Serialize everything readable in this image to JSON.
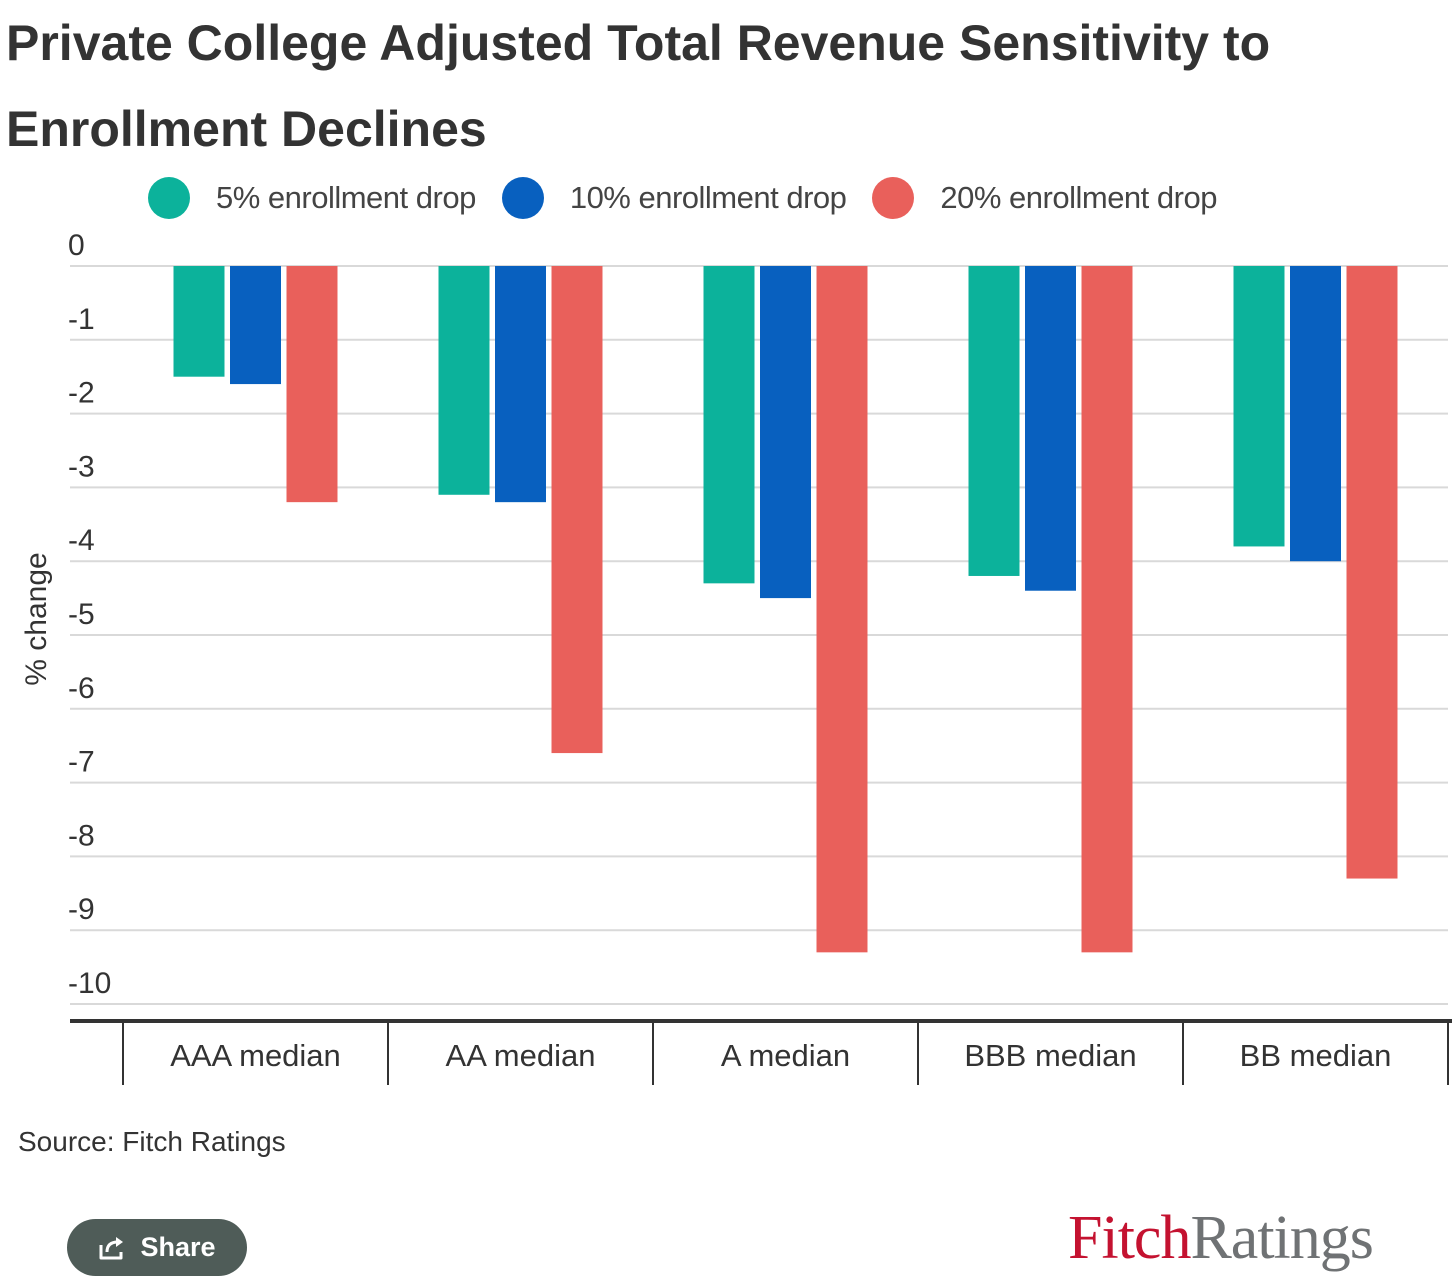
{
  "colors": {
    "series_5": "#0cb29b",
    "series_10": "#0860bf",
    "series_20": "#e9605b",
    "grid": "#d9d9d9",
    "axis": "#333333",
    "share_bg": "#4f5c58",
    "logo_red": "#c41230",
    "logo_gray": "#6f7274"
  },
  "chart_data": {
    "type": "bar",
    "title": "Private College Adjusted Total Revenue Sensitivity to Enrollment Declines",
    "ylabel": "% change",
    "xlabel": "",
    "ylim": [
      -10,
      0
    ],
    "yticks": [
      "0",
      "-1",
      "-2",
      "-3",
      "-4",
      "-5",
      "-6",
      "-7",
      "-8",
      "-9",
      "-10"
    ],
    "ytick_values": [
      0,
      -1,
      -2,
      -3,
      -4,
      -5,
      -6,
      -7,
      -8,
      -9,
      -10
    ],
    "grid": true,
    "legend_position": "top",
    "categories": [
      "AAA median",
      "AA median",
      "A median",
      "BBB median",
      "BB median"
    ],
    "series": [
      {
        "name": "5% enrollment drop",
        "color": "#0cb29b",
        "values": [
          -1.5,
          -3.1,
          -4.3,
          -4.2,
          -3.8
        ]
      },
      {
        "name": "10% enrollment drop",
        "color": "#0860bf",
        "values": [
          -1.6,
          -3.2,
          -4.5,
          -4.4,
          -4.0
        ]
      },
      {
        "name": "20% enrollment drop",
        "color": "#e9605b",
        "values": [
          -3.2,
          -6.6,
          -9.3,
          -9.3,
          -8.3
        ]
      }
    ]
  },
  "source_text": "Source: Fitch Ratings",
  "share": {
    "label": "Share",
    "icon": "share-icon"
  },
  "logo": {
    "part1": "Fitch",
    "part2": "Ratings"
  }
}
